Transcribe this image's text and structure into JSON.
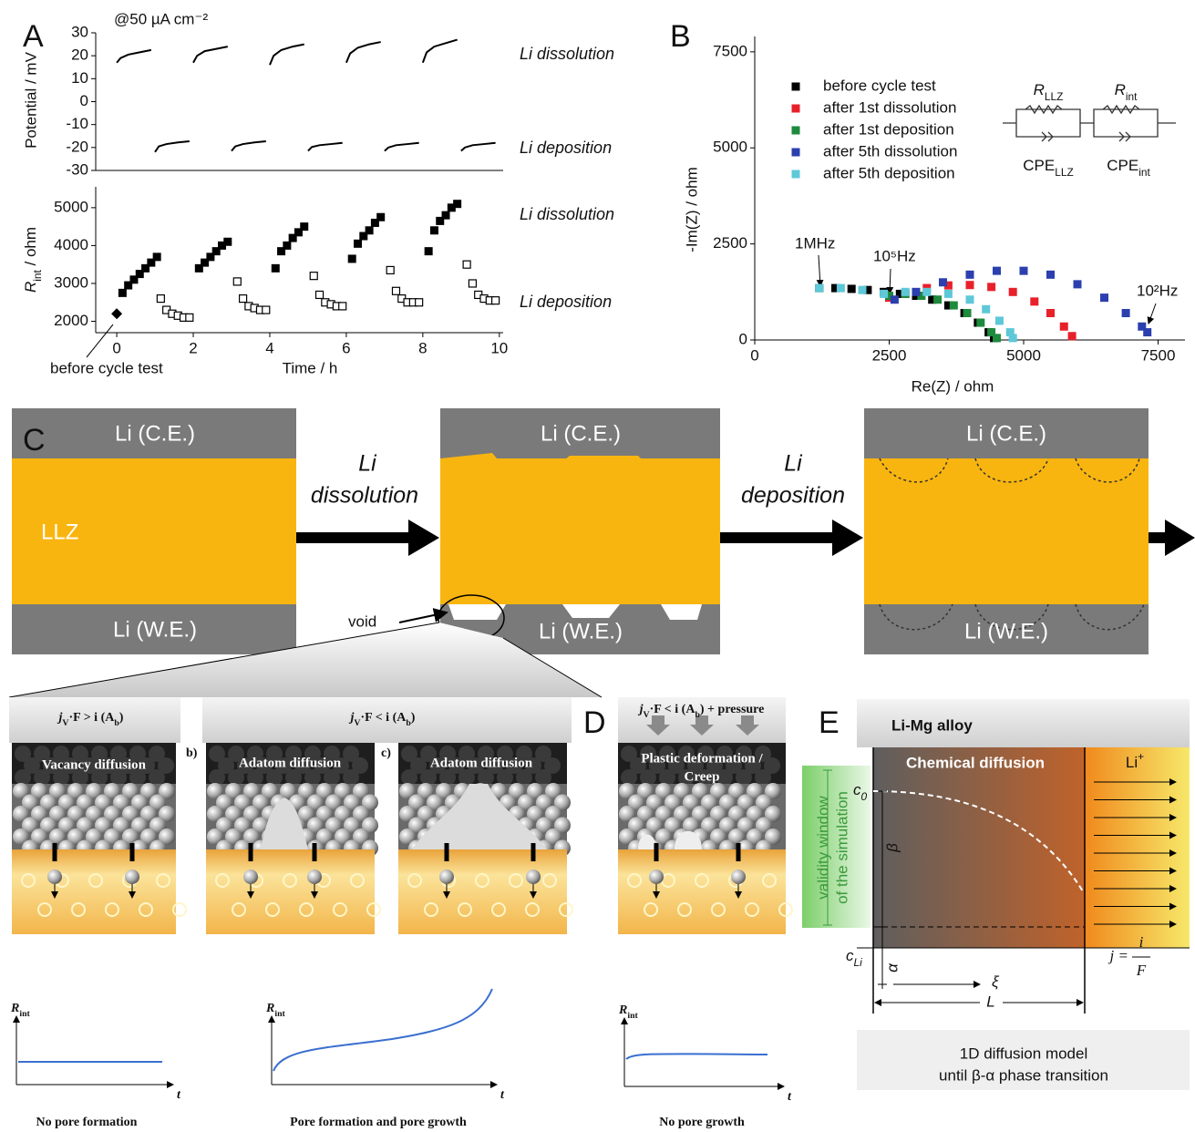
{
  "panel_labels": [
    "A",
    "B",
    "C",
    "D",
    "E"
  ],
  "chart_data": [
    {
      "type": "line",
      "title": "@50 µA cm⁻²",
      "ylabel": "Potential / mV",
      "annotations": [
        "Li dissolution",
        "Li deposition"
      ],
      "xlim": [
        -0.55,
        10.1
      ],
      "ylim": [
        -30,
        30
      ],
      "yticks": [
        -30,
        -20,
        -10,
        0,
        10,
        20,
        30
      ],
      "series": [
        {
          "color": "#000000",
          "x": [
            0,
            0.1,
            0.3,
            0.6,
            0.9,
            0.95,
            1,
            1.1,
            1.3,
            1.6,
            1.9,
            1.95,
            2,
            2.1,
            2.3,
            2.6,
            2.9,
            2.95,
            3,
            3.1,
            3.3,
            3.6,
            3.9,
            3.95,
            4,
            4.1,
            4.3,
            4.6,
            4.9,
            4.95,
            5,
            5.1,
            5.3,
            5.6,
            5.9,
            5.95,
            6,
            6.1,
            6.3,
            6.6,
            6.9,
            6.95,
            7,
            7.1,
            7.3,
            7.6,
            7.9,
            7.95,
            8,
            8.1,
            8.3,
            8.6,
            8.9,
            8.95,
            9,
            9.1,
            9.3,
            9.6,
            9.9
          ],
          "values": [
            17,
            19,
            20.5,
            21.5,
            22.5,
            null,
            -22,
            -19.5,
            -18.5,
            -17.8,
            -17.3,
            null,
            17,
            20,
            22,
            23,
            24,
            null,
            -21.5,
            -19.5,
            -18.5,
            -17.8,
            -17.3,
            null,
            16,
            20,
            22.5,
            24,
            25,
            null,
            -21.5,
            -19.8,
            -19,
            -18.5,
            -18,
            null,
            17,
            21,
            23.5,
            25,
            26,
            null,
            -21.5,
            -20,
            -19,
            -18.5,
            -18,
            null,
            17,
            21.5,
            24,
            25.5,
            27,
            null,
            -21.5,
            -20,
            -19,
            -18.5,
            -18
          ]
        }
      ]
    },
    {
      "type": "scatter",
      "ylabel": [
        "R",
        "int",
        " / ohm"
      ],
      "xlabel": "Time / h",
      "annotations": [
        "Li dissolution",
        "Li deposition",
        "before cycle test"
      ],
      "xlim": [
        -0.55,
        10.1
      ],
      "ylim": [
        1700,
        5550
      ],
      "xticks": [
        0,
        2,
        4,
        6,
        8,
        10
      ],
      "yticks": [
        2000,
        3000,
        4000,
        5000
      ],
      "series": [
        {
          "marker": "square",
          "color": "#000000",
          "x": [
            0.15,
            0.3,
            0.45,
            0.6,
            0.75,
            0.9,
            1.05,
            2.15,
            2.3,
            2.45,
            2.6,
            2.75,
            2.9,
            4.15,
            4.3,
            4.45,
            4.6,
            4.75,
            4.9,
            6.15,
            6.3,
            6.45,
            6.6,
            6.75,
            6.9,
            8.15,
            8.3,
            8.45,
            8.6,
            8.75,
            8.9
          ],
          "values": [
            2750,
            2950,
            3100,
            3250,
            3400,
            3550,
            3700,
            3400,
            3550,
            3700,
            3850,
            4000,
            4100,
            3400,
            3850,
            4000,
            4200,
            4350,
            4500,
            3650,
            4050,
            4250,
            4400,
            4600,
            4750,
            3850,
            4400,
            4650,
            4800,
            5000,
            5100
          ]
        },
        {
          "marker": "open-square",
          "color": "#000000",
          "x": [
            1.15,
            1.3,
            1.45,
            1.6,
            1.75,
            1.9,
            3.15,
            3.3,
            3.45,
            3.6,
            3.75,
            3.9,
            5.15,
            5.3,
            5.45,
            5.6,
            5.75,
            5.9,
            7.15,
            7.3,
            7.45,
            7.6,
            7.75,
            7.9,
            9.15,
            9.3,
            9.45,
            9.6,
            9.75,
            9.9
          ],
          "values": [
            2600,
            2300,
            2200,
            2150,
            2100,
            2100,
            3050,
            2600,
            2400,
            2350,
            2300,
            2300,
            3200,
            2700,
            2500,
            2450,
            2400,
            2400,
            3350,
            2800,
            2600,
            2500,
            2500,
            2500,
            3500,
            3000,
            2700,
            2600,
            2550,
            2550
          ]
        },
        {
          "marker": "diamond",
          "color": "#000000",
          "x": [
            0
          ],
          "values": [
            2200
          ]
        }
      ]
    },
    {
      "type": "scatter",
      "xlabel": "Re(Z) / ohm",
      "ylabel": "-Im(Z) / ohm",
      "legend": "upper left",
      "xlim": [
        0,
        8000
      ],
      "ylim": [
        0,
        7900
      ],
      "xticks": [
        0,
        2500,
        5000,
        7500
      ],
      "yticks": [
        0,
        2500,
        5000,
        7500
      ],
      "annotations": [
        "1MHz",
        "10⁵Hz",
        "10²Hz"
      ],
      "circuit": {
        "resistors": [
          [
            "R",
            "LLZ"
          ],
          [
            "R",
            "int"
          ]
        ],
        "cpes": [
          [
            "CPE",
            "LLZ"
          ],
          [
            "CPE",
            "int"
          ]
        ]
      },
      "series": [
        {
          "name": "before cycle test",
          "color": "#000000",
          "marker": "square",
          "x": [
            1200,
            1500,
            1800,
            2100,
            2400,
            2700,
            3000,
            3300,
            3600,
            3900,
            4150,
            4350,
            4450
          ],
          "values": [
            1350,
            1350,
            1330,
            1300,
            1250,
            1200,
            1150,
            1050,
            900,
            700,
            450,
            200,
            50
          ]
        },
        {
          "name": "after 1st dissolution",
          "color": "#e8202a",
          "marker": "square",
          "x": [
            2500,
            2800,
            3200,
            3600,
            4000,
            4400,
            4800,
            5200,
            5500,
            5750,
            5900
          ],
          "values": [
            1100,
            1200,
            1350,
            1420,
            1430,
            1380,
            1250,
            1000,
            700,
            350,
            100
          ]
        },
        {
          "name": "after 1st deposition",
          "color": "#1e8a3c",
          "marker": "square",
          "x": [
            2500,
            2800,
            3100,
            3400,
            3700,
            3950,
            4200,
            4400,
            4500
          ],
          "values": [
            1150,
            1200,
            1150,
            1050,
            900,
            700,
            450,
            200,
            50
          ]
        },
        {
          "name": "after 5th dissolution",
          "color": "#2b3fae",
          "marker": "square",
          "x": [
            2600,
            3000,
            3500,
            4000,
            4500,
            5000,
            5500,
            6000,
            6500,
            6900,
            7200,
            7300
          ],
          "values": [
            1050,
            1250,
            1500,
            1700,
            1800,
            1800,
            1700,
            1450,
            1100,
            700,
            350,
            200
          ]
        },
        {
          "name": "after 5th deposition",
          "color": "#5ec8d8",
          "marker": "square",
          "x": [
            1200,
            1600,
            2000,
            2400,
            2800,
            3200,
            3600,
            4000,
            4300,
            4550,
            4750,
            4800
          ],
          "values": [
            1350,
            1350,
            1300,
            1200,
            1250,
            1250,
            1200,
            1050,
            800,
            500,
            200,
            50
          ]
        }
      ]
    }
  ],
  "panel_c": {
    "counter_electrode": [
      "Li (C.E.)",
      "Li (C.E.)",
      "Li (C.E.)"
    ],
    "working_electrode": [
      "Li (W.E.)",
      "Li (W.E.)",
      "Li (W.E.)"
    ],
    "electrolyte": "LLZ",
    "steps": [
      [
        "Li",
        "dissolution"
      ],
      [
        "Li",
        "deposition"
      ]
    ],
    "void": "void"
  },
  "mechanisms": {
    "conditions": [
      [
        "j",
        "V",
        "·F > i (A",
        "b",
        ")"
      ],
      [
        "j",
        "V",
        "·F < i (A",
        "b",
        ")"
      ],
      [
        "j",
        "V",
        "·F < i (A",
        "b",
        ") + pressure"
      ]
    ],
    "sub_labels": [
      "b)",
      "c)"
    ],
    "processes": [
      "Vacancy diffusion",
      "Adatom diffusion",
      "Adatom diffusion",
      "Plastic deformation /",
      "Creep"
    ],
    "sketches": [
      {
        "ylabel": [
          "R",
          "int"
        ],
        "xlabel": "t",
        "caption": "No pore formation"
      },
      {
        "ylabel": [
          "R",
          "int"
        ],
        "xlabel": "t",
        "caption": "Pore formation and pore growth"
      },
      {
        "ylabel": [
          "R",
          "int"
        ],
        "xlabel": "t",
        "caption": "No pore growth"
      }
    ]
  },
  "panel_e": {
    "header": "Li-Mg alloy",
    "region": "Chemical diffusion",
    "flux": [
      "Li",
      "+"
    ],
    "validity": [
      "validity window",
      "of the simulation"
    ],
    "c0": [
      "c",
      "0"
    ],
    "cli": [
      "c",
      "Li"
    ],
    "beta": "β",
    "alpha": "α",
    "xi": "ξ",
    "length": "L",
    "current": {
      "lhs": "j =",
      "num": "i",
      "den": "F"
    },
    "model": [
      "1D diffusion model",
      "until β-α phase transition"
    ]
  }
}
